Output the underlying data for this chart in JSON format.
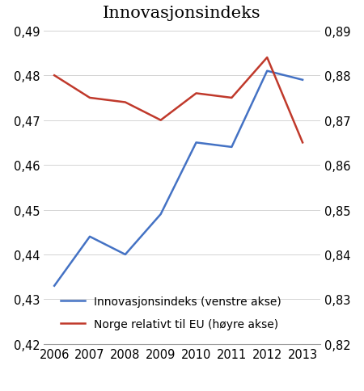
{
  "title": "Innovasjonsindeks",
  "years": [
    2006,
    2007,
    2008,
    2009,
    2010,
    2011,
    2012,
    2013
  ],
  "blue_values": [
    0.433,
    0.444,
    0.44,
    0.449,
    0.465,
    0.464,
    0.481,
    0.479
  ],
  "red_values": [
    0.88,
    0.875,
    0.874,
    0.87,
    0.876,
    0.875,
    0.884,
    0.865
  ],
  "blue_color": "#4472C4",
  "red_color": "#C0392B",
  "left_ylim": [
    0.42,
    0.49
  ],
  "right_ylim": [
    0.82,
    0.89
  ],
  "left_yticks": [
    0.42,
    0.43,
    0.44,
    0.45,
    0.46,
    0.47,
    0.48,
    0.49
  ],
  "right_yticks": [
    0.82,
    0.83,
    0.84,
    0.85,
    0.86,
    0.87,
    0.88,
    0.89
  ],
  "legend_blue": "Innovasjonsindeks (venstre akse)",
  "legend_red": "Norge relativt til EU (høyre akse)",
  "title_fontsize": 15,
  "tick_fontsize": 10.5,
  "legend_fontsize": 10
}
